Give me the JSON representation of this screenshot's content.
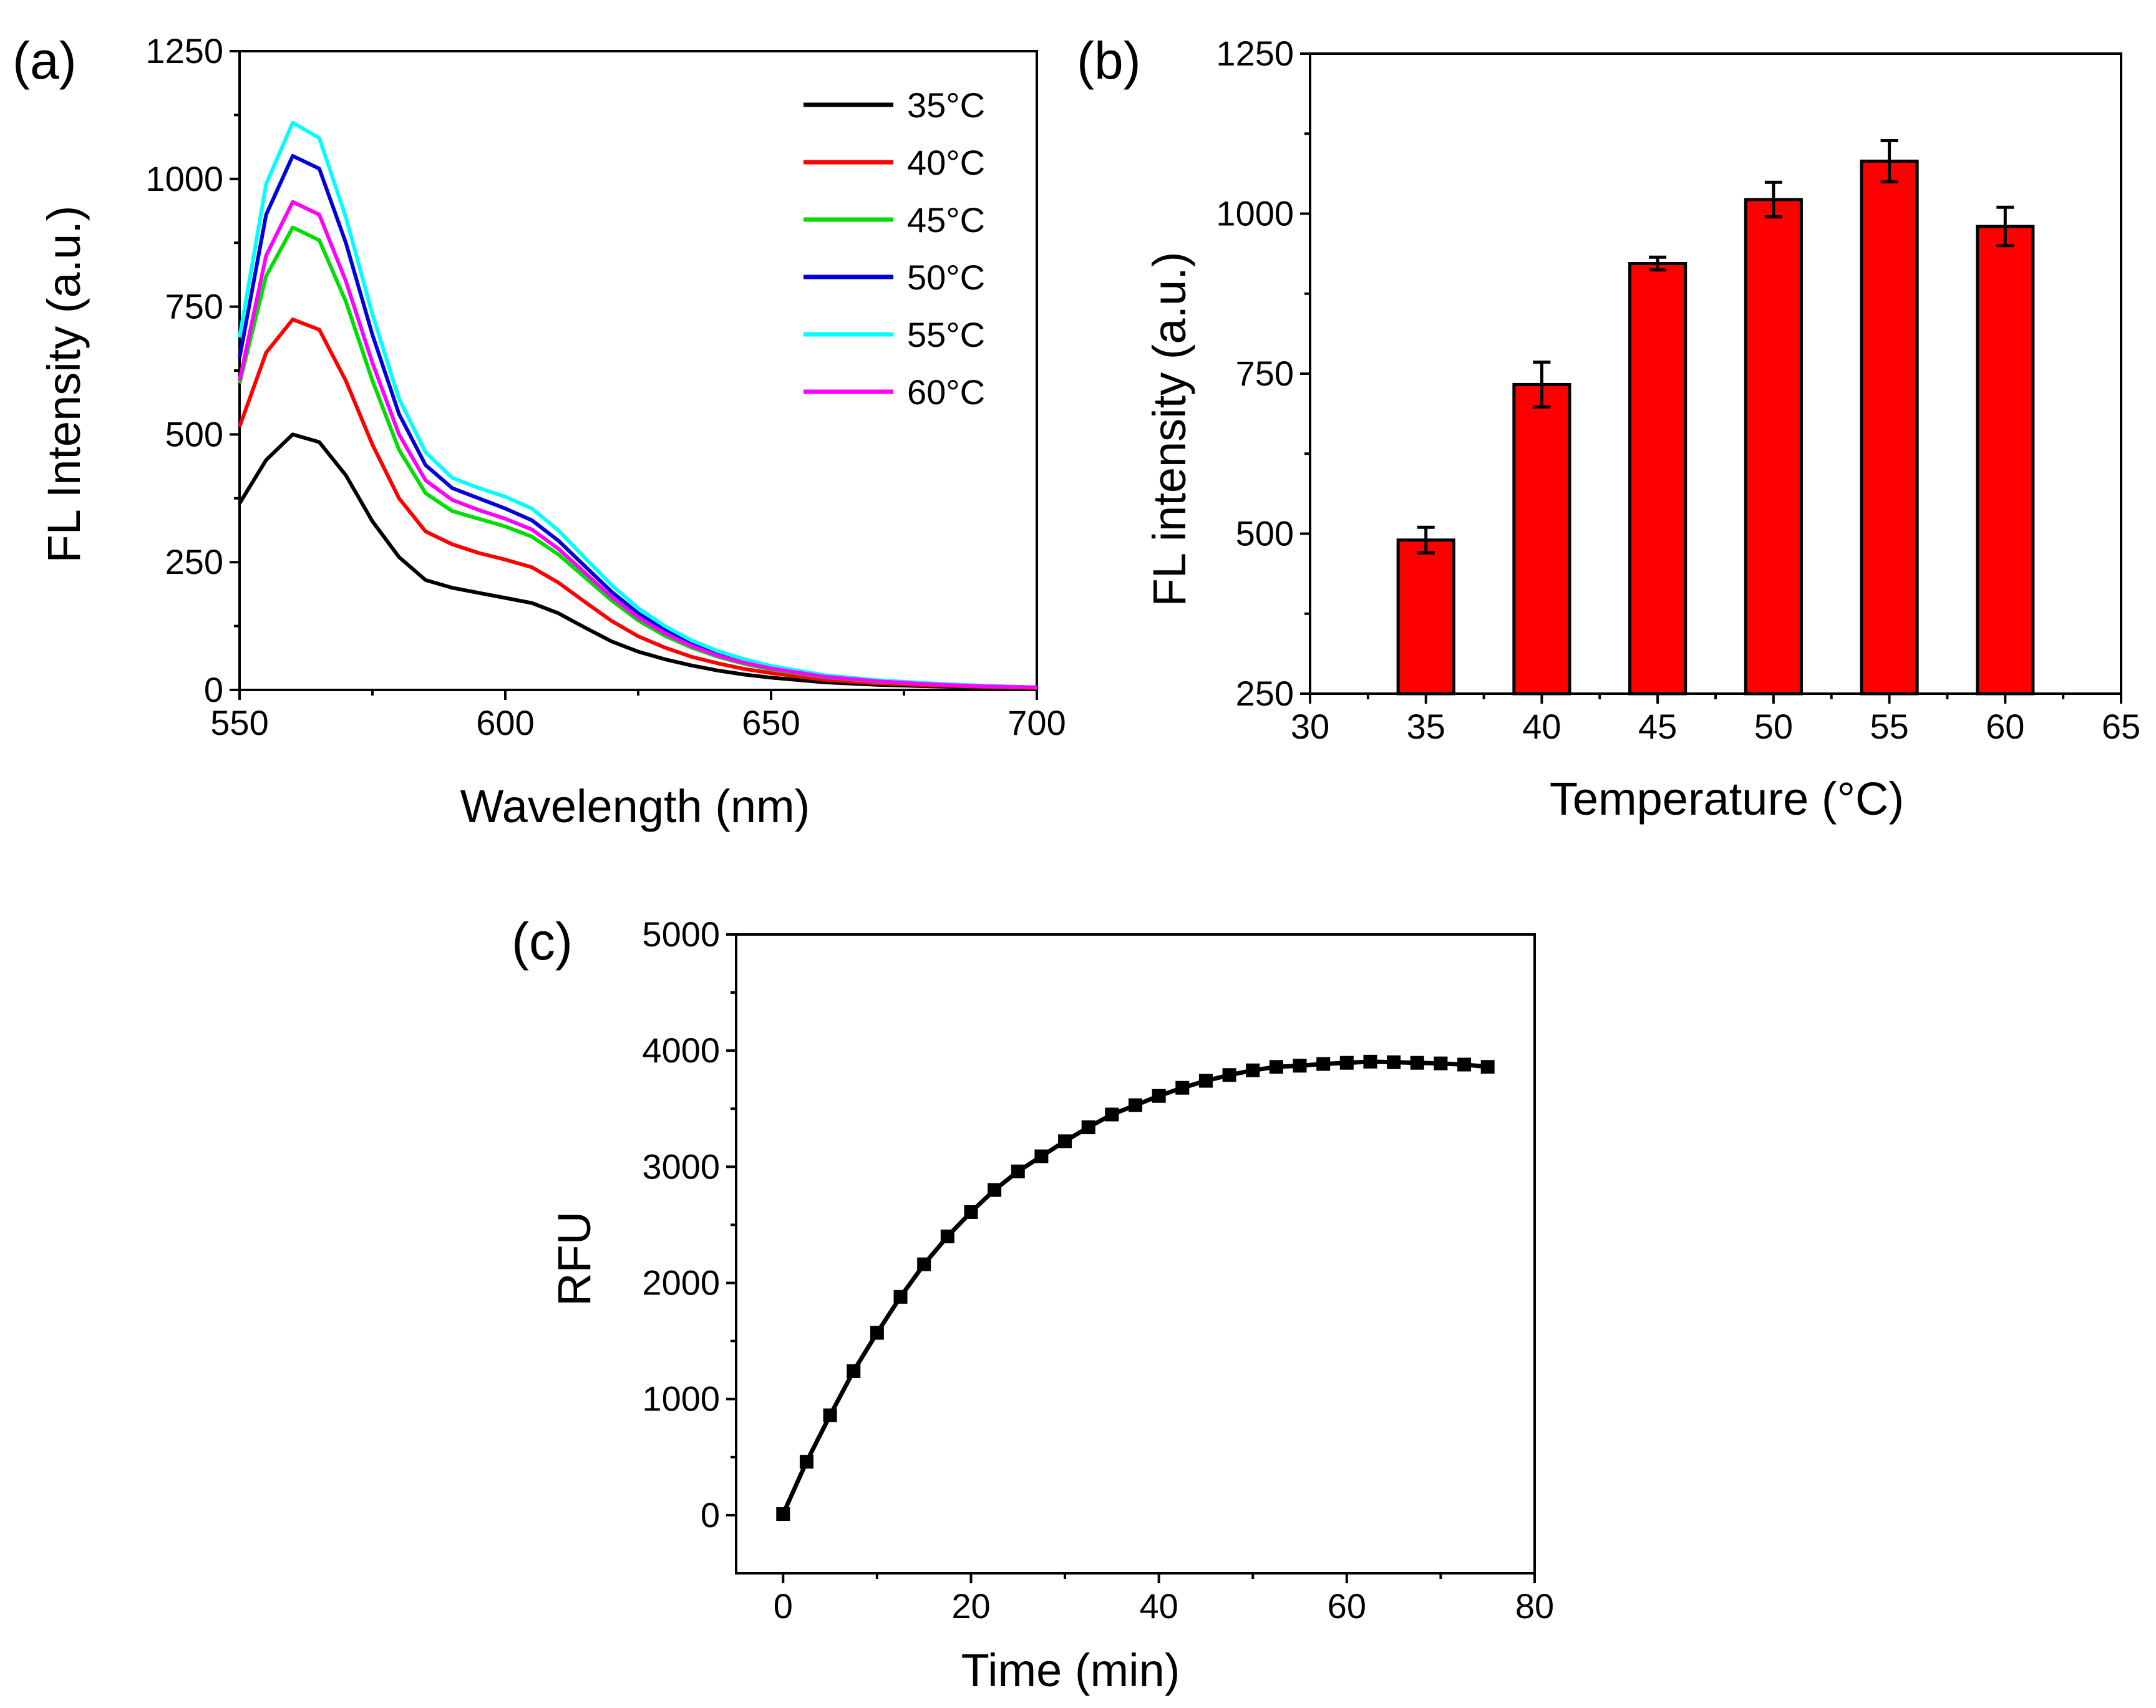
{
  "chart_data": [
    {
      "panel": "(a)",
      "type": "line",
      "title": "",
      "xlabel": "Wavelength (nm)",
      "ylabel": "FL Intensity (a.u.)",
      "xlim": [
        550,
        700
      ],
      "ylim": [
        0,
        1250
      ],
      "xticks": [
        550,
        600,
        650,
        700
      ],
      "yticks": [
        0,
        250,
        500,
        750,
        1000,
        1250
      ],
      "x": [
        550,
        555,
        560,
        565,
        570,
        575,
        580,
        585,
        590,
        595,
        600,
        605,
        610,
        615,
        620,
        625,
        630,
        635,
        640,
        645,
        650,
        660,
        670,
        680,
        690,
        700
      ],
      "series": [
        {
          "name": "35°C",
          "color": "#000000",
          "values": [
            365,
            450,
            500,
            485,
            420,
            330,
            260,
            215,
            200,
            190,
            180,
            170,
            150,
            122,
            95,
            75,
            60,
            48,
            38,
            30,
            24,
            15,
            10,
            7,
            5,
            3
          ]
        },
        {
          "name": "40°C",
          "color": "#ff0000",
          "values": [
            515,
            660,
            725,
            705,
            605,
            480,
            375,
            310,
            285,
            268,
            255,
            240,
            210,
            172,
            135,
            105,
            83,
            65,
            52,
            41,
            33,
            20,
            13,
            9,
            6,
            4
          ]
        },
        {
          "name": "45°C",
          "color": "#00dd00",
          "values": [
            600,
            810,
            905,
            880,
            760,
            605,
            470,
            385,
            350,
            335,
            320,
            300,
            265,
            220,
            175,
            136,
            106,
            83,
            65,
            51,
            40,
            25,
            16,
            11,
            7,
            5
          ]
        },
        {
          "name": "50°C",
          "color": "#0000dd",
          "values": [
            650,
            930,
            1045,
            1020,
            875,
            695,
            540,
            440,
            395,
            375,
            355,
            332,
            292,
            242,
            192,
            150,
            117,
            91,
            71,
            56,
            44,
            27,
            18,
            12,
            8,
            5
          ]
        },
        {
          "name": "55°C",
          "color": "#00ffff",
          "values": [
            690,
            990,
            1110,
            1080,
            925,
            735,
            570,
            465,
            415,
            395,
            378,
            355,
            312,
            258,
            205,
            160,
            125,
            97,
            76,
            60,
            47,
            29,
            19,
            13,
            8,
            5
          ]
        },
        {
          "name": "60°C",
          "color": "#ff00ff",
          "values": [
            605,
            850,
            955,
            930,
            800,
            640,
            500,
            410,
            372,
            352,
            335,
            314,
            276,
            229,
            182,
            142,
            111,
            86,
            67,
            53,
            42,
            26,
            17,
            11,
            7,
            5
          ]
        }
      ],
      "legend_position": "top-right"
    },
    {
      "panel": "(b)",
      "type": "bar",
      "title": "",
      "xlabel": "Temperature (°C)",
      "ylabel": "FL intensity (a.u.)",
      "xlim": [
        30,
        65
      ],
      "ylim": [
        250,
        1250
      ],
      "xticks": [
        30,
        35,
        40,
        45,
        50,
        55,
        60,
        65
      ],
      "yticks": [
        250,
        500,
        750,
        1000,
        1250
      ],
      "categories": [
        35,
        40,
        45,
        50,
        55,
        60
      ],
      "values": [
        490,
        733,
        922,
        1022,
        1082,
        980
      ],
      "errors": [
        20,
        35,
        10,
        27,
        32,
        30
      ],
      "bar_color": "#ff0000"
    },
    {
      "panel": "(c)",
      "type": "line",
      "title": "",
      "xlabel": "Time (min)",
      "ylabel": "RFU",
      "xlim": [
        -5,
        80
      ],
      "ylim": [
        -500,
        5000
      ],
      "xticks": [
        0,
        20,
        40,
        60,
        80
      ],
      "yticks": [
        0,
        1000,
        2000,
        3000,
        4000,
        5000
      ],
      "x": [
        0,
        2.5,
        5,
        7.5,
        10,
        12.5,
        15,
        17.5,
        20,
        22.5,
        25,
        27.5,
        30,
        32.5,
        35,
        37.5,
        40,
        42.5,
        45,
        47.5,
        50,
        52.5,
        55,
        57.5,
        60,
        62.5,
        65,
        67.5,
        70,
        72.5,
        75
      ],
      "series": [
        {
          "name": "RFU",
          "color": "#000000",
          "values": [
            10,
            460,
            860,
            1240,
            1570,
            1880,
            2160,
            2400,
            2610,
            2800,
            2960,
            3090,
            3220,
            3340,
            3450,
            3530,
            3610,
            3680,
            3740,
            3790,
            3830,
            3860,
            3870,
            3885,
            3895,
            3905,
            3900,
            3895,
            3890,
            3880,
            3860
          ]
        }
      ]
    }
  ]
}
